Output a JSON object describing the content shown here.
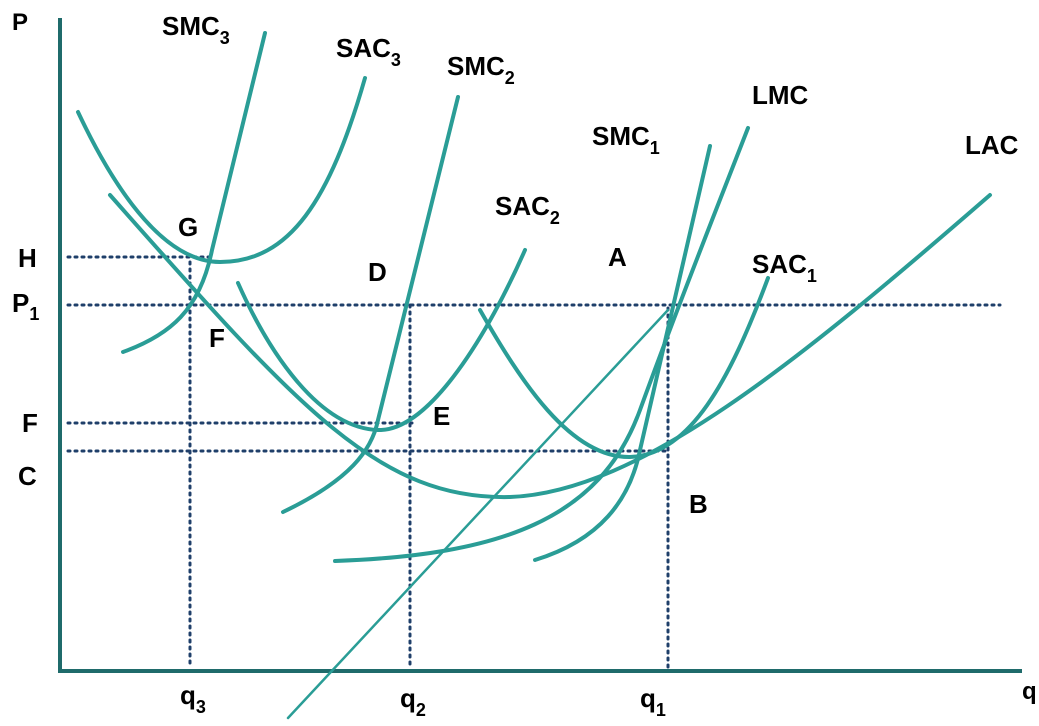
{
  "colors": {
    "curve": "#2a9d96",
    "axis": "#1f6b6b",
    "guide": "#1f3f6a",
    "text": "#000000"
  },
  "axes": {
    "y_label": "P",
    "x_label": "q"
  },
  "curves": {
    "smc3": {
      "name": "SMC",
      "sub": "3"
    },
    "sac3": {
      "name": "SAC",
      "sub": "3"
    },
    "smc2": {
      "name": "SMC",
      "sub": "2"
    },
    "sac2": {
      "name": "SAC",
      "sub": "2"
    },
    "smc1": {
      "name": "SMC",
      "sub": "1"
    },
    "sac1": {
      "name": "SAC",
      "sub": "1"
    },
    "lmc": {
      "name": "LMC"
    },
    "lac": {
      "name": "LAC"
    }
  },
  "price_levels": {
    "h": {
      "name": "H"
    },
    "p1": {
      "name": "P",
      "sub": "1"
    },
    "f": {
      "name": "F"
    },
    "c": {
      "name": "C"
    }
  },
  "quantities": {
    "q3": {
      "name": "q",
      "sub": "3"
    },
    "q2": {
      "name": "q",
      "sub": "2"
    },
    "q1": {
      "name": "q",
      "sub": "1"
    }
  },
  "points": {
    "g": "G",
    "f": "F",
    "d": "D",
    "e": "E",
    "a": "A",
    "b": "B"
  }
}
